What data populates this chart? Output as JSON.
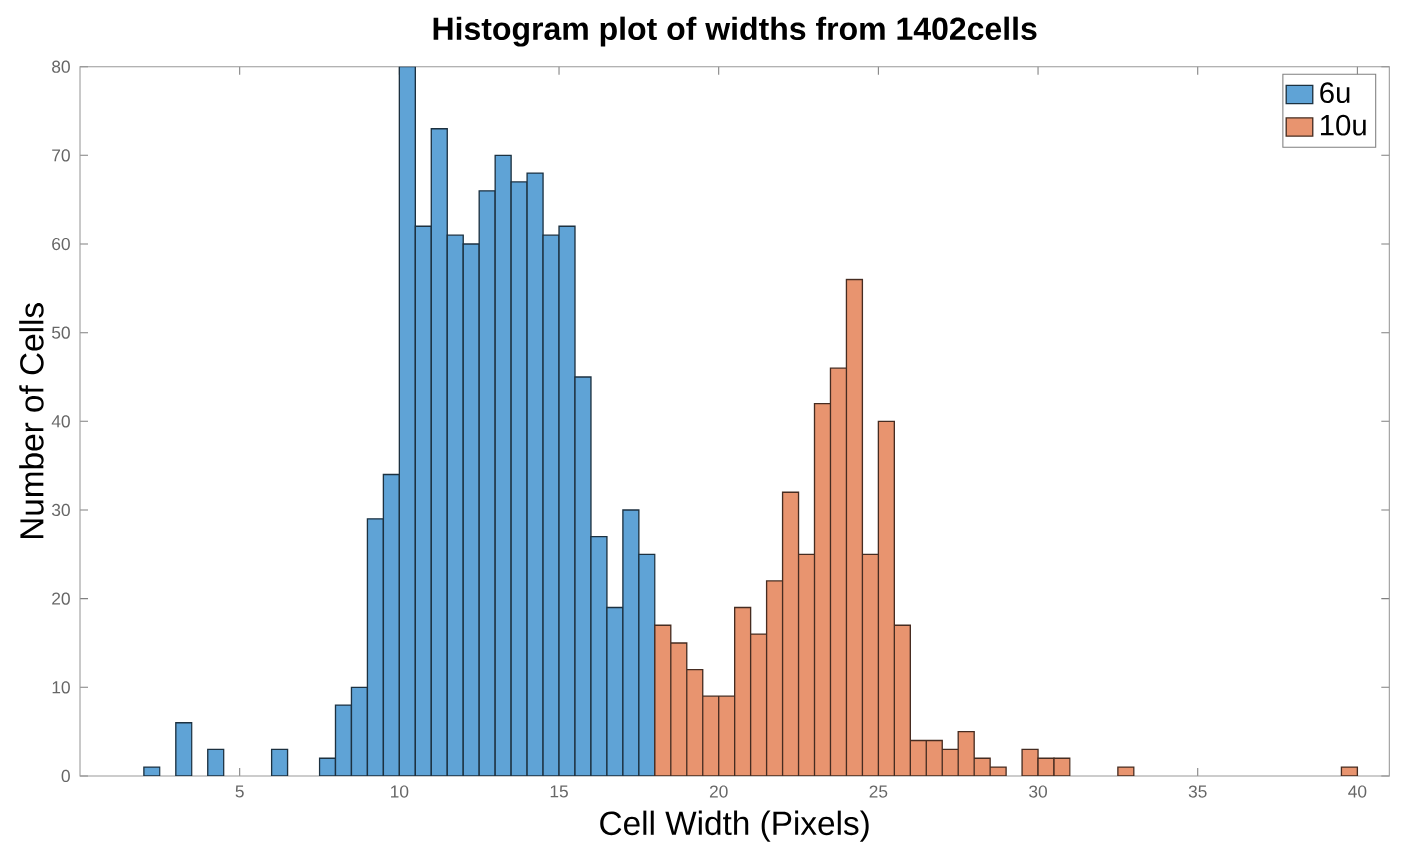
{
  "chart_data": {
    "type": "histogram",
    "title": "Histogram plot of widths from 1402cells",
    "xlabel": "Cell Width (Pixels)",
    "ylabel": "Number of Cells",
    "xlim": [
      0,
      41
    ],
    "ylim": [
      0,
      80
    ],
    "xticks": [
      5,
      10,
      15,
      20,
      25,
      30,
      35,
      40
    ],
    "yticks": [
      0,
      10,
      20,
      30,
      40,
      50,
      60,
      70,
      80
    ],
    "legend": "top right",
    "grid": false,
    "bins": [
      2,
      2.5,
      3,
      3.5,
      4,
      4.5,
      5,
      5.5,
      6,
      6.5,
      7,
      7.5,
      8,
      8.5,
      9,
      9.5,
      10,
      10.5,
      11,
      11.5,
      12,
      12.5,
      13,
      13.5,
      14,
      14.5,
      15,
      15.5,
      16,
      16.5,
      17,
      17.5,
      18,
      18.5,
      19,
      19.5,
      20,
      20.5,
      21,
      21.5,
      22,
      22.5,
      23,
      23.5,
      24,
      24.5,
      25,
      25.5,
      26,
      26.5,
      27,
      27.5,
      28,
      28.5,
      29,
      29.5,
      30,
      30.5,
      31,
      31.5,
      32,
      32.5,
      33,
      33.5,
      34,
      34.5,
      35,
      35.5,
      36,
      36.5,
      37,
      37.5,
      38,
      38.5,
      39,
      39.5,
      40
    ],
    "series": [
      {
        "name": "6u",
        "color": "#5fa3d6",
        "values": [
          1,
          0,
          6,
          0,
          3,
          0,
          0,
          0,
          3,
          0,
          0,
          2,
          8,
          10,
          29,
          34,
          80,
          62,
          73,
          61,
          60,
          66,
          70,
          67,
          68,
          61,
          62,
          45,
          27,
          19,
          30,
          25,
          null,
          null,
          null,
          null,
          null,
          null,
          null,
          null,
          null,
          null,
          null,
          null,
          null,
          null,
          null,
          null,
          null,
          null,
          null,
          null,
          null,
          null,
          null,
          null,
          null,
          null,
          null,
          null,
          null,
          null,
          null,
          null,
          null,
          null,
          null,
          null,
          null,
          null,
          null,
          null,
          null,
          null,
          null,
          null
        ]
      },
      {
        "name": "10u",
        "color": "#e8946f",
        "values": [
          null,
          null,
          null,
          null,
          null,
          null,
          null,
          null,
          null,
          null,
          null,
          null,
          null,
          null,
          null,
          null,
          null,
          null,
          null,
          null,
          null,
          null,
          null,
          null,
          null,
          null,
          null,
          null,
          null,
          null,
          null,
          null,
          17,
          15,
          12,
          9,
          9,
          19,
          16,
          22,
          32,
          25,
          42,
          46,
          56,
          25,
          40,
          17,
          4,
          4,
          3,
          5,
          2,
          1,
          0,
          3,
          2,
          2,
          0,
          0,
          0,
          1,
          0,
          0,
          0,
          0,
          0,
          0,
          0,
          0,
          0,
          0,
          0,
          0,
          0,
          1
        ]
      }
    ]
  }
}
